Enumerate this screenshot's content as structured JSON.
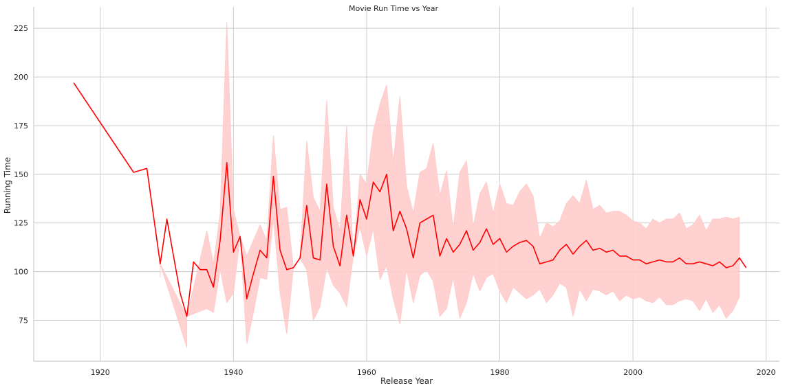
{
  "chart_data": {
    "type": "line",
    "title": "Movie Run Time vs Year",
    "xlabel": "Release Year",
    "ylabel": "Running Time",
    "xlim": [
      1910,
      2022
    ],
    "ylim": [
      54,
      236
    ],
    "xticks": [
      1920,
      1940,
      1960,
      1980,
      2000,
      2020
    ],
    "yticks": [
      75,
      100,
      125,
      150,
      175,
      200,
      225
    ],
    "grid": true,
    "line_color": "#ff0000",
    "band_color": "#ffcccc",
    "series": [
      {
        "x": [
          1916,
          1925,
          1927,
          1929,
          1930,
          1932,
          1933,
          1934,
          1935,
          1936,
          1937,
          1938,
          1939,
          1940,
          1941,
          1942,
          1943,
          1944,
          1945,
          1946,
          1947,
          1948,
          1949,
          1950,
          1951,
          1952,
          1953,
          1954,
          1955,
          1956,
          1957,
          1958,
          1959,
          1960,
          1961,
          1962,
          1963,
          1964,
          1965,
          1966,
          1967,
          1968,
          1969,
          1970,
          1971,
          1972,
          1973,
          1974,
          1975,
          1976,
          1977,
          1978,
          1979,
          1980,
          1981,
          1982,
          1983,
          1984,
          1985,
          1986,
          1987,
          1988,
          1989,
          1990,
          1991,
          1992,
          1993,
          1994,
          1995,
          1996,
          1997,
          1998,
          1999,
          2000,
          2001,
          2002,
          2003,
          2004,
          2005,
          2006,
          2007,
          2008,
          2009,
          2010,
          2011,
          2012,
          2013,
          2014,
          2015,
          2016,
          2017
        ],
        "y": [
          197,
          151,
          153,
          104,
          127,
          89,
          77,
          105,
          101,
          101,
          92,
          116,
          156,
          110,
          118,
          86,
          99,
          111,
          107,
          149,
          111,
          101,
          102,
          107,
          134,
          107,
          106,
          145,
          113,
          103,
          129,
          108,
          137,
          127,
          146,
          141,
          150,
          121,
          131,
          122,
          107,
          125,
          127,
          129,
          108,
          117,
          110,
          114,
          121,
          111,
          115,
          122,
          114,
          117,
          110,
          113,
          115,
          116,
          113,
          104,
          105,
          106,
          111,
          114,
          109,
          113,
          116,
          111,
          112,
          110,
          111,
          108,
          108,
          106,
          106,
          104,
          105,
          106,
          105,
          105,
          107,
          104,
          104,
          105,
          104,
          103,
          105,
          102,
          103,
          107,
          102
        ],
        "ci_x": [
          1929,
          1929,
          1933,
          1933,
          1936,
          1937,
          1938,
          1939,
          1940,
          1941,
          1942,
          1943,
          1944,
          1945,
          1946,
          1947,
          1948,
          1949,
          1950,
          1951,
          1952,
          1953,
          1954,
          1955,
          1956,
          1957,
          1958,
          1959,
          1960,
          1961,
          1962,
          1963,
          1964,
          1965,
          1966,
          1967,
          1968,
          1969,
          1970,
          1971,
          1972,
          1973,
          1974,
          1975,
          1976,
          1977,
          1978,
          1979,
          1980,
          1981,
          1982,
          1983,
          1984,
          1985,
          1986,
          1987,
          1988,
          1989,
          1990,
          1991,
          1992,
          1993,
          1994,
          1995,
          1996,
          1997,
          1998,
          1999,
          2000,
          2001,
          2002,
          2003,
          2004,
          2005,
          2006,
          2007,
          2008,
          2009,
          2010,
          2011,
          2012,
          2013,
          2014,
          2015,
          2016
        ],
        "ci_lower": [
          97,
          104,
          61,
          77,
          81,
          79,
          101,
          84,
          89,
          118,
          63,
          79,
          97,
          96,
          127,
          89,
          68,
          102,
          107,
          101,
          75,
          82,
          102,
          93,
          89,
          82,
          108,
          123,
          108,
          122,
          96,
          103,
          86,
          73,
          101,
          84,
          98,
          101,
          95,
          77,
          81,
          97,
          76,
          84,
          99,
          90,
          97,
          99,
          90,
          84,
          92,
          89,
          86,
          88,
          91,
          84,
          88,
          94,
          92,
          77,
          91,
          85,
          91,
          90,
          88,
          90,
          85,
          88,
          86,
          87,
          85,
          84,
          87,
          83,
          83,
          85,
          86,
          85,
          80,
          86,
          79,
          83,
          76,
          80,
          87
        ],
        "ci_upper": [
          104,
          104,
          77,
          77,
          121,
          104,
          130,
          228,
          132,
          118,
          108,
          116,
          124,
          116,
          170,
          132,
          133,
          102,
          107,
          167,
          138,
          131,
          188,
          133,
          121,
          175,
          108,
          150,
          145,
          172,
          186,
          196,
          156,
          190,
          144,
          130,
          151,
          153,
          166,
          139,
          152,
          122,
          151,
          157,
          123,
          140,
          146,
          130,
          145,
          135,
          134,
          141,
          145,
          139,
          117,
          125,
          123,
          126,
          135,
          139,
          135,
          147,
          132,
          134,
          130,
          131,
          131,
          129,
          126,
          125,
          122,
          127,
          125,
          127,
          127,
          130,
          122,
          124,
          129,
          121,
          127,
          127,
          128,
          127,
          128
        ]
      }
    ]
  }
}
